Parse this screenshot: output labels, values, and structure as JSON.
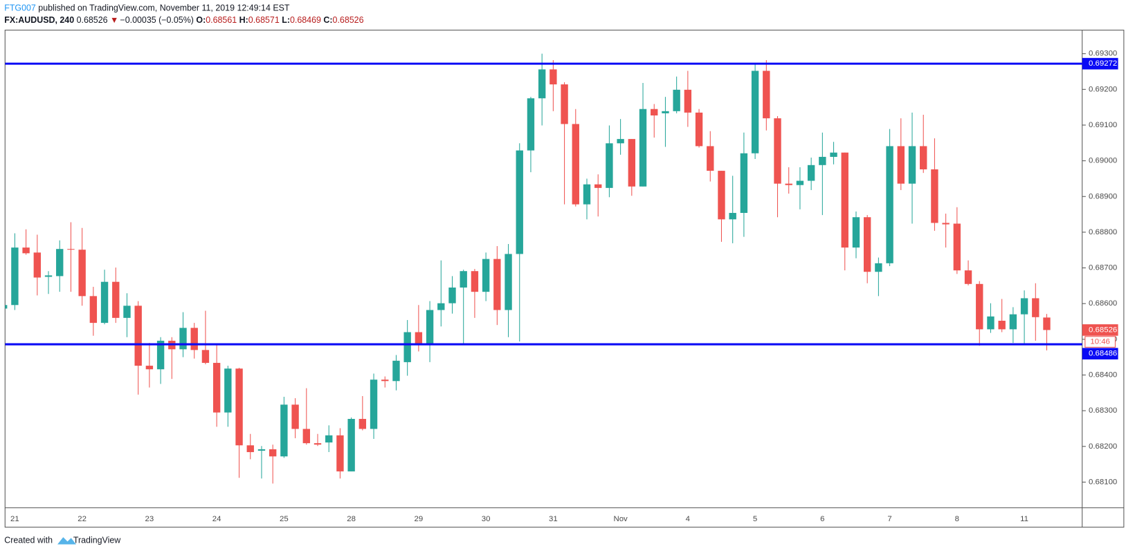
{
  "header": {
    "author": "FTG007",
    "published": " published on TradingView.com, November 11, 2019 12:49:14 EST",
    "symbol": "FX:AUDUSD, 240",
    "direction": "▼",
    "change": "−0.00035 (−0.05%)",
    "o_label": "O:",
    "h_label": "H:",
    "l_label": "L:",
    "c_label": "C:"
  },
  "footer": {
    "created": "Created with",
    "brand": "TradingView"
  },
  "chart_data": {
    "type": "candlestick",
    "categories": [
      null,
      "21",
      null,
      null,
      null,
      null,
      null,
      "22",
      null,
      null,
      null,
      null,
      null,
      "23",
      null,
      null,
      null,
      null,
      null,
      "24",
      null,
      null,
      null,
      null,
      null,
      "25",
      null,
      null,
      null,
      null,
      null,
      "28",
      null,
      null,
      null,
      null,
      null,
      "29",
      null,
      null,
      null,
      null,
      null,
      "30",
      null,
      null,
      null,
      null,
      null,
      "31",
      null,
      null,
      null,
      null,
      null,
      "Nov",
      null,
      null,
      null,
      null,
      null,
      "4",
      null,
      null,
      null,
      null,
      null,
      "5",
      null,
      null,
      null,
      null,
      null,
      "6",
      null,
      null,
      null,
      null,
      null,
      "7",
      null,
      null,
      null,
      null,
      null,
      "8",
      null,
      null,
      null,
      null,
      null,
      "11",
      null,
      null
    ],
    "open": [
      0.68586,
      0.68596,
      0.68757,
      0.68743,
      0.68675,
      0.68677,
      0.68753,
      0.68751,
      0.68621,
      0.68546,
      0.68661,
      0.6856,
      0.68594,
      0.68426,
      0.68416,
      0.68496,
      0.68472,
      0.68532,
      0.6847,
      0.68434,
      0.68295,
      0.68418,
      0.68203,
      0.68188,
      0.68192,
      0.68172,
      0.68317,
      0.68249,
      0.68209,
      0.68211,
      0.68231,
      0.6813,
      0.68277,
      0.68249,
      0.68387,
      0.68383,
      0.68436,
      0.6852,
      0.68486,
      0.68582,
      0.68601,
      0.68645,
      0.68691,
      0.68633,
      0.68725,
      0.68582,
      0.68739,
      0.69029,
      0.69175,
      0.69256,
      0.69214,
      0.69103,
      0.68878,
      0.68934,
      0.68924,
      0.69049,
      0.69061,
      0.68928,
      0.69145,
      0.69133,
      0.69139,
      0.69199,
      0.69135,
      0.69041,
      0.68972,
      0.68836,
      0.68854,
      0.69021,
      0.69252,
      0.69119,
      0.68936,
      0.68932,
      0.68944,
      0.68988,
      0.69011,
      0.69023,
      0.68757,
      0.68842,
      0.68689,
      0.68713,
      0.69041,
      0.68936,
      0.69041,
      0.68976,
      0.68826,
      0.68824,
      0.68693,
      0.68655,
      0.68528,
      0.68552,
      0.68528,
      0.6857,
      0.68615,
      0.68561
    ],
    "high": [
      0.68607,
      0.68797,
      0.68808,
      0.68793,
      0.68691,
      0.68777,
      0.68828,
      0.68812,
      0.68647,
      0.68695,
      0.68701,
      0.68629,
      0.68607,
      0.6849,
      0.68506,
      0.68506,
      0.68576,
      0.68546,
      0.6858,
      0.68486,
      0.68426,
      0.6842,
      0.68235,
      0.68201,
      0.68205,
      0.68339,
      0.68335,
      0.68363,
      0.68235,
      0.68259,
      0.68251,
      0.68281,
      0.68341,
      0.68404,
      0.68396,
      0.68456,
      0.68554,
      0.68596,
      0.68607,
      0.68721,
      0.68677,
      0.68695,
      0.68697,
      0.68743,
      0.68761,
      0.68767,
      0.69049,
      0.69179,
      0.693,
      0.69282,
      0.6922,
      0.69145,
      0.6895,
      0.68962,
      0.69099,
      0.69117,
      0.69061,
      0.69218,
      0.69159,
      0.69179,
      0.69236,
      0.69252,
      0.69145,
      0.69083,
      0.68972,
      0.68958,
      0.69079,
      0.6927,
      0.69282,
      0.69125,
      0.68982,
      0.68982,
      0.69009,
      0.69079,
      0.69053,
      0.69023,
      0.68858,
      0.68848,
      0.68729,
      0.69089,
      0.69119,
      0.69135,
      0.69129,
      0.69063,
      0.68852,
      0.6887,
      0.68721,
      0.68663,
      0.68601,
      0.68613,
      0.6859,
      0.68637,
      0.68657,
      0.68571
    ],
    "low": [
      0.68582,
      0.68582,
      0.68737,
      0.68623,
      0.68627,
      0.68633,
      0.68633,
      0.68594,
      0.6851,
      0.68542,
      0.68546,
      0.68506,
      0.68345,
      0.68365,
      0.68375,
      0.68389,
      0.6845,
      0.68446,
      0.6843,
      0.68255,
      0.68255,
      0.68112,
      0.68164,
      0.6811,
      0.68096,
      0.68168,
      0.68223,
      0.68205,
      0.68201,
      0.68184,
      0.6811,
      0.6813,
      0.68245,
      0.68221,
      0.68365,
      0.68357,
      0.68398,
      0.68466,
      0.68436,
      0.68536,
      0.68572,
      0.68486,
      0.6856,
      0.68607,
      0.6854,
      0.68506,
      0.68494,
      0.68968,
      0.69099,
      0.69139,
      0.68878,
      0.68872,
      0.68836,
      0.68844,
      0.68898,
      0.69017,
      0.68902,
      0.68928,
      0.69065,
      0.69039,
      0.69133,
      0.69095,
      0.69037,
      0.68942,
      0.68773,
      0.68769,
      0.68787,
      0.69005,
      0.69085,
      0.68842,
      0.68908,
      0.68864,
      0.68918,
      0.68848,
      0.6899,
      0.68693,
      0.68727,
      0.68657,
      0.68621,
      0.68705,
      0.68918,
      0.68824,
      0.68966,
      0.68804,
      0.68757,
      0.68683,
      0.68651,
      0.68482,
      0.68518,
      0.6852,
      0.6849,
      0.68488,
      0.68496,
      0.68469
    ],
    "close": [
      0.68596,
      0.68757,
      0.68741,
      0.68673,
      0.68679,
      0.68753,
      0.68751,
      0.68621,
      0.68546,
      0.68661,
      0.6856,
      0.68594,
      0.68426,
      0.68416,
      0.68496,
      0.68472,
      0.68532,
      0.6847,
      0.68434,
      0.68295,
      0.68418,
      0.68203,
      0.68184,
      0.68192,
      0.68172,
      0.68317,
      0.68249,
      0.68209,
      0.68205,
      0.68231,
      0.6813,
      0.68277,
      0.68249,
      0.68387,
      0.68383,
      0.6844,
      0.6852,
      0.68486,
      0.68582,
      0.68601,
      0.68645,
      0.68691,
      0.68633,
      0.68725,
      0.68582,
      0.68739,
      0.69029,
      0.69175,
      0.69256,
      0.69214,
      0.69103,
      0.68878,
      0.68934,
      0.68924,
      0.69049,
      0.69061,
      0.68928,
      0.69145,
      0.69127,
      0.69139,
      0.69199,
      0.69135,
      0.69041,
      0.68972,
      0.68836,
      0.68854,
      0.69021,
      0.69252,
      0.69119,
      0.68936,
      0.68932,
      0.68944,
      0.68988,
      0.69011,
      0.69023,
      0.68757,
      0.68842,
      0.68689,
      0.68713,
      0.69041,
      0.68936,
      0.69041,
      0.68976,
      0.68826,
      0.68822,
      0.68693,
      0.68655,
      0.68528,
      0.68564,
      0.68528,
      0.6857,
      0.68615,
      0.68562,
      0.68526
    ],
    "up_color": "#26a69a",
    "down_color": "#ef5350",
    "ylim": [
      0.68028,
      0.69366
    ],
    "yticks": [
      {
        "value": 0.681,
        "label": "0.68100"
      },
      {
        "value": 0.682,
        "label": "0.68200"
      },
      {
        "value": 0.683,
        "label": "0.68300"
      },
      {
        "value": 0.684,
        "label": "0.68400"
      },
      {
        "value": 0.685,
        "label": "0.68500"
      },
      {
        "value": 0.686,
        "label": "0.68600"
      },
      {
        "value": 0.687,
        "label": "0.68700"
      },
      {
        "value": 0.688,
        "label": "0.68800"
      },
      {
        "value": 0.689,
        "label": "0.68900"
      },
      {
        "value": 0.69,
        "label": "0.69000"
      },
      {
        "value": 0.691,
        "label": "0.69100"
      },
      {
        "value": 0.692,
        "label": "0.69200"
      },
      {
        "value": 0.693,
        "label": "0.69300"
      }
    ],
    "grid": false,
    "lines": [
      {
        "value": 0.69272,
        "color": "#0a0af5"
      },
      {
        "value": 0.68486,
        "color": "#0a0af5"
      }
    ],
    "countdown": "10:46"
  }
}
